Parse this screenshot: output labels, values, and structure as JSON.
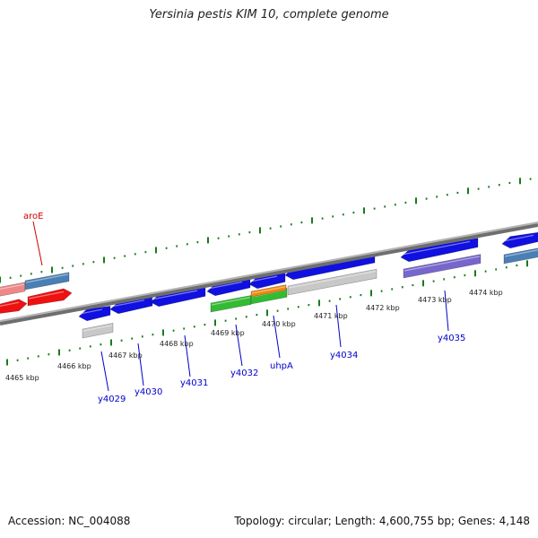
{
  "title": "Yersinia pestis KIM 10, complete genome",
  "accession": "Accession: NC_004088",
  "summary": "Topology: circular; Length: 4,600,755 bp; Genes: 4,148",
  "colors": {
    "backbone": "#808080",
    "tick": "#1a7a1a",
    "gene_blue": "#1010e0",
    "gene_red": "#ee1111",
    "gene_pink": "#ee8888",
    "gene_steel": "#4a7fb5",
    "gene_green": "#33bb33",
    "gene_orange": "#ee8811",
    "gene_gray": "#c8c8c8",
    "gene_purple": "#7766cc",
    "label_blue": "#0000cc",
    "label_red": "#cc0000"
  },
  "kbp_labels": [
    "4465 kbp",
    "4466 kbp",
    "4467 kbp",
    "4468 kbp",
    "4469 kbp",
    "4470 kbp",
    "4471 kbp",
    "4472 kbp",
    "4473 kbp",
    "4474 kbp"
  ],
  "gene_labels": [
    "aroE",
    "y4029",
    "y4030",
    "y4031",
    "y4032",
    "uhpA",
    "y4034",
    "y4035"
  ]
}
